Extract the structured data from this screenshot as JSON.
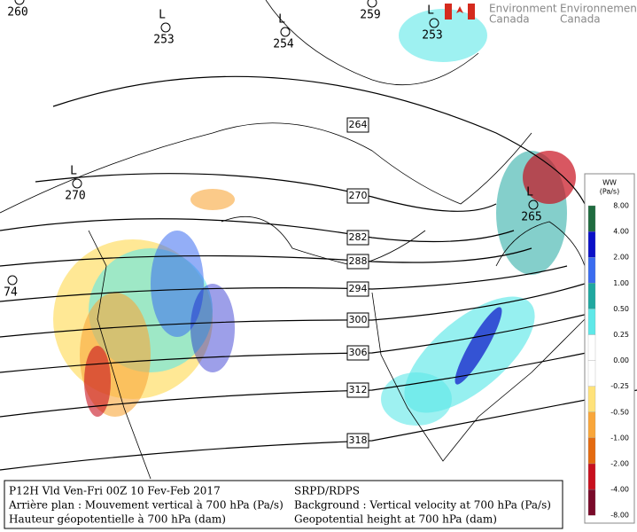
{
  "logo": {
    "en": [
      "Environment",
      "Canada"
    ],
    "fr": [
      "Environnement",
      "Canada"
    ]
  },
  "contour_labels": [
    "264",
    "270",
    "282",
    "288",
    "294",
    "300",
    "306",
    "312",
    "318"
  ],
  "lows": [
    {
      "symbol": null,
      "value": "260"
    },
    {
      "symbol": "L",
      "value": "253"
    },
    {
      "symbol": "L",
      "value": "254"
    },
    {
      "symbol": null,
      "value": "259"
    },
    {
      "symbol": "L",
      "value": "253"
    },
    {
      "symbol": "L",
      "value": "270"
    },
    {
      "symbol": null,
      "value": "74"
    },
    {
      "symbol": "L",
      "value": "265"
    }
  ],
  "legend": {
    "title": "WW",
    "units": "(Pa/s)",
    "labels": [
      "8.00",
      "4.00",
      "2.00",
      "1.00",
      "0.50",
      "0.25",
      "0.00",
      "-0.25",
      "-0.50",
      "-1.00",
      "-2.00",
      "-4.00",
      "-8.00"
    ],
    "colors": [
      "#1f6b3f",
      "#0a10c8",
      "#3a6cf0",
      "#1fa8a0",
      "#5ee8e8",
      "#ffffff",
      "#ffffff",
      "#ffe27a",
      "#f9a63a",
      "#e46a10",
      "#c8101e",
      "#7a0a2a"
    ]
  },
  "info": {
    "left": [
      "P12H Vld Ven-Fri 00Z 10 Fev-Feb 2017",
      "Arrière plan : Mouvement vertical à 700 hPa (Pa/s)",
      "Hauteur géopotentielle à 700 hPa (dam)"
    ],
    "right": [
      "SRPD/RDPS",
      "Background : Vertical velocity at 700 hPa (Pa/s)",
      "Geopotential height at 700 hPa (dam)"
    ]
  }
}
